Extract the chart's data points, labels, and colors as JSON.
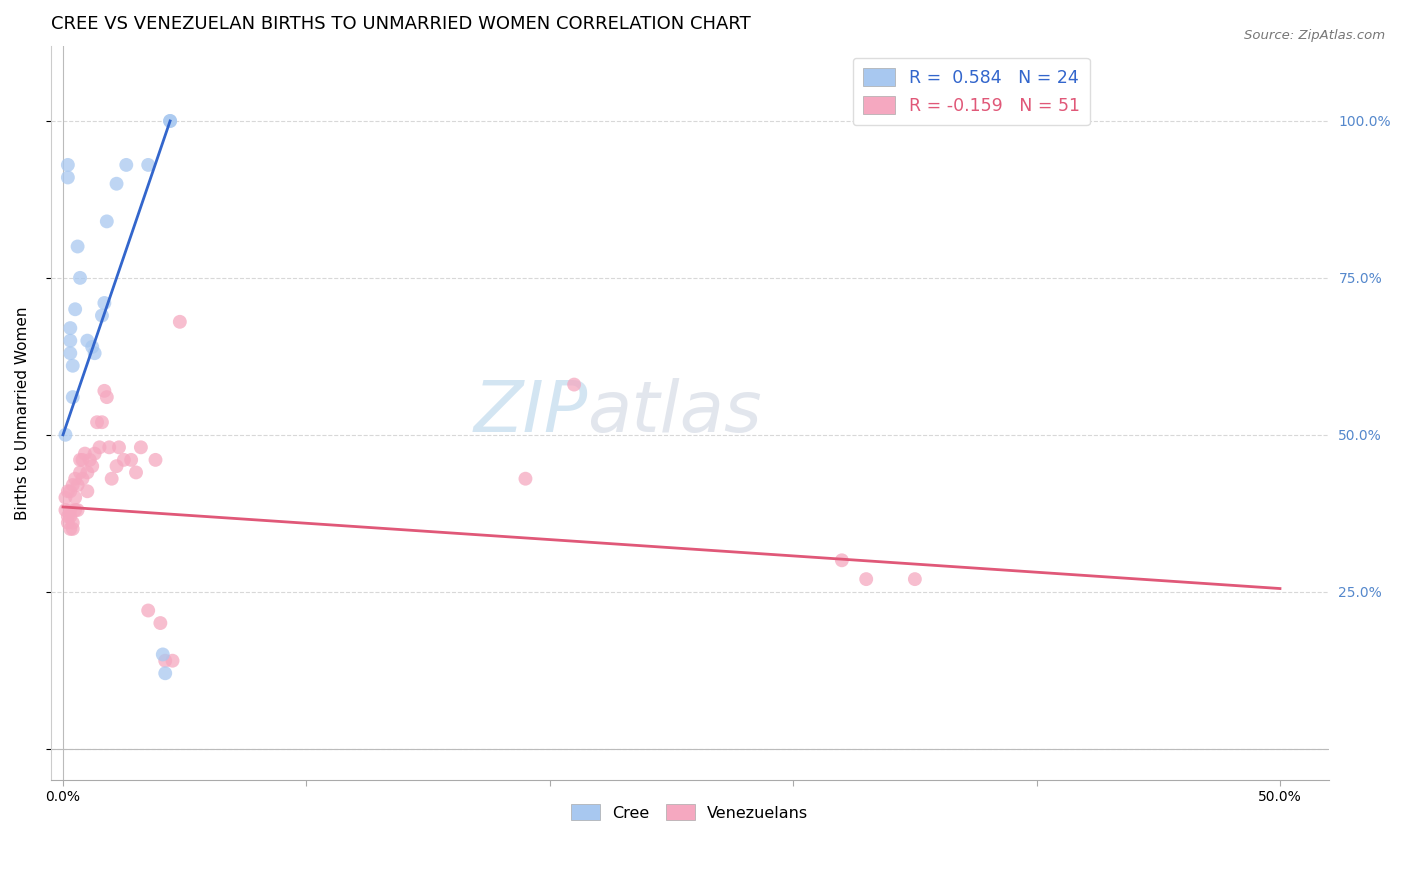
{
  "title": "CREE VS VENEZUELAN BIRTHS TO UNMARRIED WOMEN CORRELATION CHART",
  "source": "Source: ZipAtlas.com",
  "ylabel": "Births to Unmarried Women",
  "cree_color": "#a8c8f0",
  "venezuelan_color": "#f5a8c0",
  "cree_line_color": "#3366cc",
  "venezuelan_line_color": "#e05878",
  "legend_cree_label": "R =  0.584   N = 24",
  "legend_venezuelan_label": "R = -0.159   N = 51",
  "watermark_zip": "ZIP",
  "watermark_atlas": "atlas",
  "background_color": "#ffffff",
  "grid_color": "#d8d8d8",
  "title_fontsize": 13,
  "axis_label_fontsize": 11,
  "tick_fontsize": 10,
  "marker_size": 100,
  "right_tick_color": "#5588cc",
  "cree_points_x": [
    0.001,
    0.002,
    0.002,
    0.003,
    0.003,
    0.003,
    0.004,
    0.004,
    0.005,
    0.006,
    0.007,
    0.01,
    0.012,
    0.013,
    0.016,
    0.017,
    0.018,
    0.022,
    0.026,
    0.035,
    0.041,
    0.042,
    0.044,
    0.044
  ],
  "cree_points_y": [
    0.5,
    0.91,
    0.93,
    0.63,
    0.65,
    0.67,
    0.56,
    0.61,
    0.7,
    0.8,
    0.75,
    0.65,
    0.64,
    0.63,
    0.69,
    0.71,
    0.84,
    0.9,
    0.93,
    0.93,
    0.15,
    0.12,
    1.0,
    1.0
  ],
  "venezuelan_points_x": [
    0.001,
    0.001,
    0.002,
    0.002,
    0.002,
    0.003,
    0.003,
    0.003,
    0.003,
    0.004,
    0.004,
    0.004,
    0.005,
    0.005,
    0.005,
    0.006,
    0.006,
    0.007,
    0.007,
    0.008,
    0.008,
    0.009,
    0.01,
    0.01,
    0.011,
    0.012,
    0.013,
    0.014,
    0.015,
    0.016,
    0.017,
    0.018,
    0.019,
    0.02,
    0.022,
    0.023,
    0.025,
    0.028,
    0.03,
    0.032,
    0.035,
    0.038,
    0.04,
    0.042,
    0.045,
    0.048,
    0.19,
    0.21,
    0.32,
    0.33,
    0.35
  ],
  "venezuelan_points_y": [
    0.38,
    0.4,
    0.36,
    0.37,
    0.41,
    0.35,
    0.37,
    0.38,
    0.41,
    0.35,
    0.36,
    0.42,
    0.38,
    0.4,
    0.43,
    0.38,
    0.42,
    0.44,
    0.46,
    0.43,
    0.46,
    0.47,
    0.41,
    0.44,
    0.46,
    0.45,
    0.47,
    0.52,
    0.48,
    0.52,
    0.57,
    0.56,
    0.48,
    0.43,
    0.45,
    0.48,
    0.46,
    0.46,
    0.44,
    0.48,
    0.22,
    0.46,
    0.2,
    0.14,
    0.14,
    0.68,
    0.43,
    0.58,
    0.3,
    0.27,
    0.27
  ],
  "cree_line_x": [
    0.0,
    0.044
  ],
  "cree_line_y": [
    0.5,
    1.0
  ],
  "venezuelan_line_x": [
    0.0,
    0.5
  ],
  "venezuelan_line_y": [
    0.385,
    0.255
  ],
  "xlim": [
    -0.005,
    0.52
  ],
  "ylim": [
    -0.05,
    1.12
  ],
  "yticks": [
    0.0,
    0.25,
    0.5,
    0.75,
    1.0
  ],
  "xticks": [
    0.0,
    0.1,
    0.2,
    0.3,
    0.4,
    0.5
  ]
}
